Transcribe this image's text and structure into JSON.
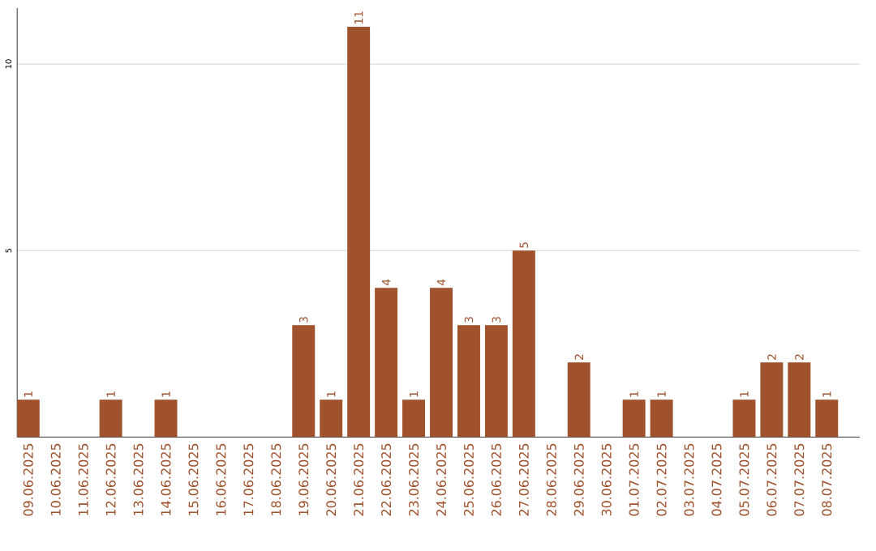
{
  "chart_data": {
    "type": "bar",
    "categories": [
      "09.06.2025",
      "10.06.2025",
      "11.06.2025",
      "12.06.2025",
      "13.06.2025",
      "14.06.2025",
      "15.06.2025",
      "16.06.2025",
      "17.06.2025",
      "18.06.2025",
      "19.06.2025",
      "20.06.2025",
      "21.06.2025",
      "22.06.2025",
      "23.06.2025",
      "24.06.2025",
      "25.06.2025",
      "26.06.2025",
      "27.06.2025",
      "28.06.2025",
      "29.06.2025",
      "30.06.2025",
      "01.07.2025",
      "02.07.2025",
      "03.07.2025",
      "04.07.2025",
      "05.07.2025",
      "06.07.2025",
      "07.07.2025",
      "08.07.2025"
    ],
    "values": [
      1,
      0,
      0,
      1,
      0,
      1,
      0,
      0,
      0,
      0,
      3,
      1,
      11,
      4,
      1,
      4,
      3,
      3,
      5,
      0,
      2,
      0,
      1,
      1,
      0,
      0,
      1,
      2,
      2,
      1
    ],
    "value_labels": [
      "1",
      null,
      null,
      "1",
      null,
      "1",
      null,
      null,
      null,
      null,
      "3",
      "1",
      "11",
      "4",
      "1",
      "4",
      "3",
      "3",
      "5",
      null,
      "2",
      null,
      "1",
      "1",
      null,
      null,
      "1",
      "2",
      "2",
      "1"
    ],
    "color": "#a0522d",
    "ylim": [
      0,
      11.5
    ],
    "yticks": [
      5,
      10
    ],
    "grid": "y"
  }
}
